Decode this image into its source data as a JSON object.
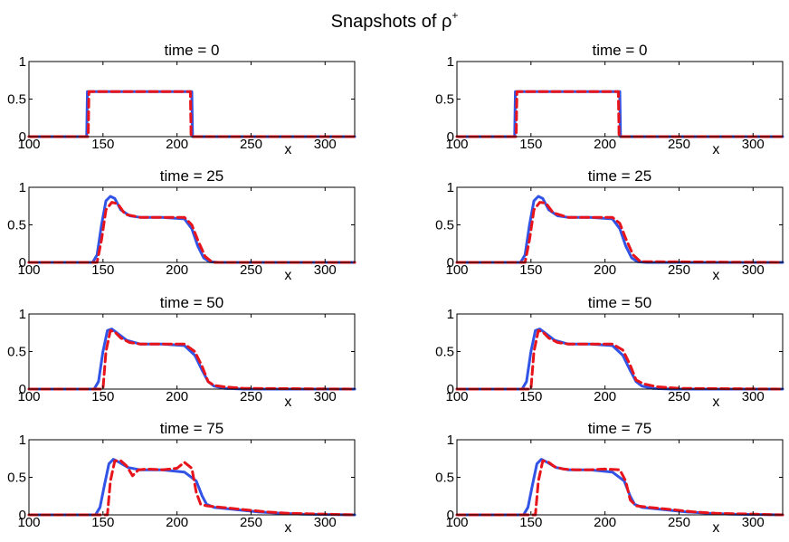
{
  "figure": {
    "title": "Snapshots of ρ",
    "title_superscript": "+"
  },
  "chart_data": [
    {
      "type": "line",
      "title": "time = 0",
      "xlabel": "x",
      "ylabel": "",
      "xlim": [
        100,
        320
      ],
      "ylim": [
        0,
        1
      ],
      "xticks": [
        100,
        150,
        200,
        250,
        300
      ],
      "yticks": [
        0,
        0.5,
        1
      ],
      "series": [
        {
          "name": "solid",
          "color": "#3153e6",
          "style": "solid",
          "x": [
            100,
            139,
            139.5,
            210,
            210.5,
            320
          ],
          "y": [
            0,
            0,
            0.6,
            0.6,
            0,
            0
          ]
        },
        {
          "name": "dashed",
          "color": "#e8141b",
          "style": "dashed",
          "x": [
            100,
            140,
            140.5,
            209,
            209.5,
            320
          ],
          "y": [
            0,
            0,
            0.6,
            0.6,
            0,
            0
          ]
        }
      ]
    },
    {
      "type": "line",
      "title": "time = 0",
      "xlabel": "x",
      "ylabel": "",
      "xlim": [
        100,
        320
      ],
      "ylim": [
        0,
        1
      ],
      "xticks": [
        100,
        150,
        200,
        250,
        300
      ],
      "yticks": [
        0,
        0.5,
        1
      ],
      "series": [
        {
          "name": "solid",
          "color": "#3153e6",
          "style": "solid",
          "x": [
            100,
            139,
            139.5,
            210,
            210.5,
            320
          ],
          "y": [
            0,
            0,
            0.6,
            0.6,
            0,
            0
          ]
        },
        {
          "name": "dashed",
          "color": "#e8141b",
          "style": "dashed",
          "x": [
            100,
            140,
            140.5,
            209,
            209.5,
            320
          ],
          "y": [
            0,
            0,
            0.6,
            0.6,
            0,
            0
          ]
        }
      ]
    },
    {
      "type": "line",
      "title": "time = 25",
      "xlabel": "x",
      "ylabel": "",
      "xlim": [
        100,
        320
      ],
      "ylim": [
        0,
        1
      ],
      "xticks": [
        100,
        150,
        200,
        250,
        300
      ],
      "yticks": [
        0,
        0.5,
        1
      ],
      "series": [
        {
          "name": "solid",
          "color": "#3153e6",
          "style": "solid",
          "x": [
            100,
            143,
            146,
            149,
            152,
            155,
            158,
            162,
            168,
            175,
            190,
            205,
            210,
            214,
            218,
            222,
            228,
            320
          ],
          "y": [
            0,
            0,
            0.1,
            0.5,
            0.82,
            0.88,
            0.85,
            0.7,
            0.62,
            0.6,
            0.6,
            0.58,
            0.45,
            0.22,
            0.06,
            0.01,
            0,
            0
          ]
        },
        {
          "name": "dashed",
          "color": "#e8141b",
          "style": "dashed",
          "x": [
            100,
            146,
            149,
            152,
            156,
            160,
            165,
            175,
            190,
            205,
            210,
            214,
            219,
            224,
            320
          ],
          "y": [
            0,
            0,
            0.3,
            0.7,
            0.8,
            0.78,
            0.64,
            0.6,
            0.6,
            0.6,
            0.5,
            0.3,
            0.08,
            0,
            0
          ]
        }
      ]
    },
    {
      "type": "line",
      "title": "time = 25",
      "xlabel": "x",
      "ylabel": "",
      "xlim": [
        100,
        320
      ],
      "ylim": [
        0,
        1
      ],
      "xticks": [
        100,
        150,
        200,
        250,
        300
      ],
      "yticks": [
        0,
        0.5,
        1
      ],
      "series": [
        {
          "name": "solid",
          "color": "#3153e6",
          "style": "solid",
          "x": [
            100,
            143,
            146,
            149,
            152,
            155,
            158,
            162,
            168,
            175,
            190,
            205,
            210,
            214,
            218,
            222,
            228,
            320
          ],
          "y": [
            0,
            0,
            0.1,
            0.5,
            0.82,
            0.88,
            0.85,
            0.7,
            0.62,
            0.6,
            0.6,
            0.58,
            0.45,
            0.22,
            0.06,
            0.01,
            0,
            0
          ]
        },
        {
          "name": "dashed",
          "color": "#e8141b",
          "style": "dashed",
          "x": [
            100,
            146,
            149,
            152,
            156,
            160,
            165,
            175,
            190,
            205,
            210,
            214,
            219,
            224,
            320
          ],
          "y": [
            0,
            0,
            0.3,
            0.7,
            0.8,
            0.79,
            0.66,
            0.6,
            0.6,
            0.6,
            0.52,
            0.32,
            0.1,
            0.01,
            0
          ]
        }
      ]
    },
    {
      "type": "line",
      "title": "time = 50",
      "xlabel": "x",
      "ylabel": "",
      "xlim": [
        100,
        320
      ],
      "ylim": [
        0,
        1
      ],
      "xticks": [
        100,
        150,
        200,
        250,
        300
      ],
      "yticks": [
        0,
        0.5,
        1
      ],
      "series": [
        {
          "name": "solid",
          "color": "#3153e6",
          "style": "solid",
          "x": [
            100,
            144,
            147,
            150,
            153,
            156,
            160,
            166,
            175,
            190,
            205,
            212,
            217,
            221,
            225,
            232,
            245,
            320
          ],
          "y": [
            0,
            0,
            0.1,
            0.5,
            0.78,
            0.8,
            0.74,
            0.65,
            0.6,
            0.6,
            0.58,
            0.45,
            0.25,
            0.1,
            0.04,
            0.01,
            0,
            0
          ]
        },
        {
          "name": "dashed",
          "color": "#e8141b",
          "style": "dashed",
          "x": [
            100,
            150,
            152,
            155,
            158,
            162,
            168,
            175,
            190,
            205,
            212,
            217,
            221,
            225,
            232,
            245,
            320
          ],
          "y": [
            0,
            0,
            0.5,
            0.78,
            0.76,
            0.68,
            0.62,
            0.6,
            0.6,
            0.6,
            0.5,
            0.3,
            0.1,
            0.05,
            0.03,
            0.01,
            0
          ]
        }
      ]
    },
    {
      "type": "line",
      "title": "time = 50",
      "xlabel": "x",
      "ylabel": "",
      "xlim": [
        100,
        320
      ],
      "ylim": [
        0,
        1
      ],
      "xticks": [
        100,
        150,
        200,
        250,
        300
      ],
      "yticks": [
        0,
        0.5,
        1
      ],
      "series": [
        {
          "name": "solid",
          "color": "#3153e6",
          "style": "solid",
          "x": [
            100,
            144,
            147,
            150,
            153,
            156,
            160,
            166,
            175,
            190,
            205,
            212,
            217,
            221,
            225,
            232,
            245,
            320
          ],
          "y": [
            0,
            0,
            0.1,
            0.5,
            0.78,
            0.8,
            0.74,
            0.65,
            0.6,
            0.6,
            0.58,
            0.45,
            0.25,
            0.1,
            0.04,
            0.01,
            0,
            0
          ]
        },
        {
          "name": "dashed",
          "color": "#e8141b",
          "style": "dashed",
          "x": [
            100,
            150,
            152,
            155,
            158,
            162,
            168,
            175,
            190,
            205,
            212,
            217,
            221,
            226,
            235,
            250,
            320
          ],
          "y": [
            0,
            0,
            0.5,
            0.78,
            0.76,
            0.68,
            0.62,
            0.6,
            0.6,
            0.6,
            0.52,
            0.32,
            0.12,
            0.07,
            0.03,
            0.01,
            0
          ]
        }
      ]
    },
    {
      "type": "line",
      "title": "time = 75",
      "xlabel": "x",
      "ylabel": "",
      "xlim": [
        100,
        320
      ],
      "ylim": [
        0,
        1
      ],
      "xticks": [
        100,
        150,
        200,
        250,
        300
      ],
      "yticks": [
        0,
        0.5,
        1
      ],
      "series": [
        {
          "name": "solid",
          "color": "#3153e6",
          "style": "solid",
          "x": [
            100,
            145,
            148,
            151,
            154,
            157,
            161,
            167,
            175,
            190,
            205,
            213,
            217,
            220,
            225,
            240,
            255,
            270,
            285,
            320
          ],
          "y": [
            0,
            0,
            0.1,
            0.4,
            0.68,
            0.74,
            0.7,
            0.63,
            0.6,
            0.6,
            0.57,
            0.45,
            0.25,
            0.14,
            0.1,
            0.07,
            0.04,
            0.02,
            0.01,
            0
          ]
        },
        {
          "name": "dashed",
          "color": "#e8141b",
          "style": "dashed",
          "x": [
            100,
            153,
            155,
            158,
            162,
            166,
            170,
            174,
            180,
            190,
            200,
            205,
            210,
            213,
            216,
            220,
            230,
            245,
            260,
            275,
            320
          ],
          "y": [
            0,
            0,
            0.45,
            0.72,
            0.72,
            0.65,
            0.52,
            0.6,
            0.61,
            0.6,
            0.62,
            0.7,
            0.62,
            0.3,
            0.14,
            0.12,
            0.1,
            0.07,
            0.04,
            0.02,
            0
          ]
        }
      ]
    },
    {
      "type": "line",
      "title": "time = 75",
      "xlabel": "x",
      "ylabel": "",
      "xlim": [
        100,
        320
      ],
      "ylim": [
        0,
        1
      ],
      "xticks": [
        100,
        150,
        200,
        250,
        300
      ],
      "yticks": [
        0,
        0.5,
        1
      ],
      "series": [
        {
          "name": "solid",
          "color": "#3153e6",
          "style": "solid",
          "x": [
            100,
            145,
            148,
            151,
            154,
            157,
            161,
            167,
            175,
            190,
            205,
            213,
            217,
            220,
            225,
            240,
            255,
            270,
            285,
            320
          ],
          "y": [
            0,
            0,
            0.1,
            0.4,
            0.68,
            0.74,
            0.7,
            0.63,
            0.6,
            0.6,
            0.57,
            0.45,
            0.25,
            0.14,
            0.1,
            0.07,
            0.04,
            0.02,
            0.01,
            0
          ]
        },
        {
          "name": "dashed",
          "color": "#e8141b",
          "style": "dashed",
          "x": [
            100,
            153,
            155,
            158,
            162,
            166,
            172,
            180,
            190,
            200,
            210,
            214,
            217,
            221,
            230,
            245,
            260,
            275,
            320
          ],
          "y": [
            0,
            0,
            0.45,
            0.72,
            0.7,
            0.64,
            0.61,
            0.6,
            0.6,
            0.61,
            0.6,
            0.45,
            0.2,
            0.12,
            0.1,
            0.07,
            0.04,
            0.02,
            0
          ]
        }
      ]
    }
  ]
}
